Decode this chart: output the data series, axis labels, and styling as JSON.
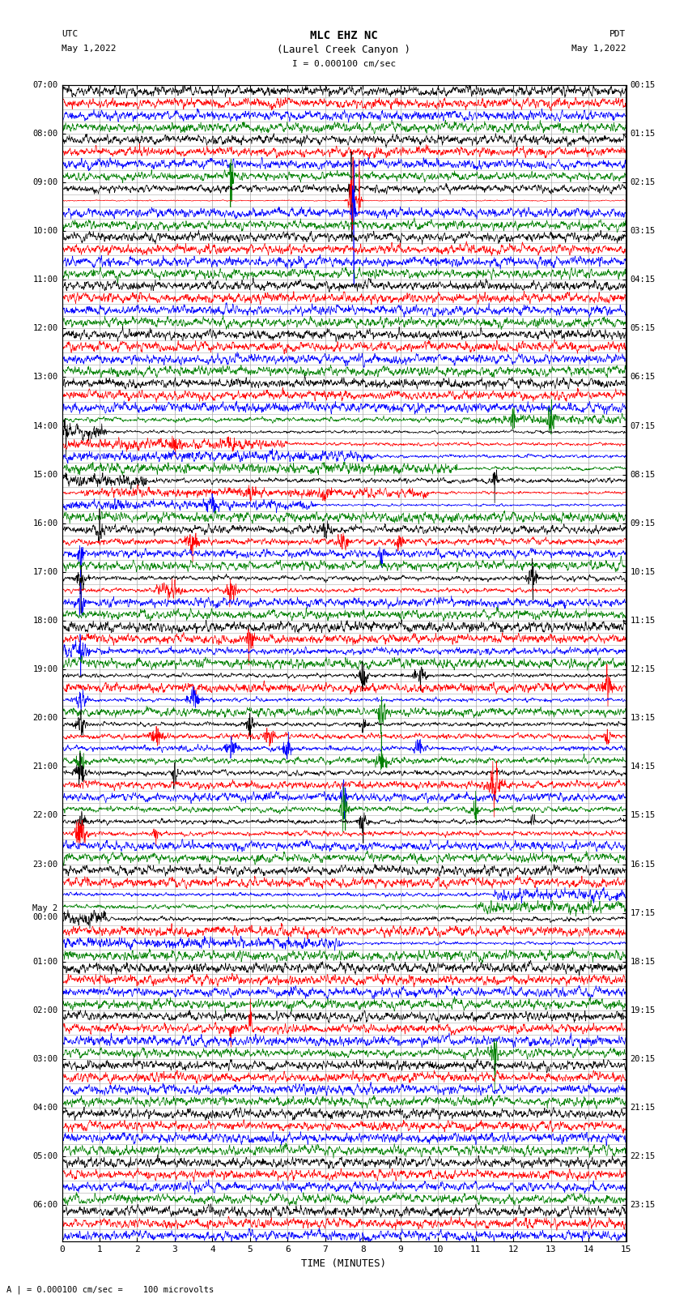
{
  "title_line1": "MLC EHZ NC",
  "title_line2": "(Laurel Creek Canyon )",
  "scale_label": "I = 0.000100 cm/sec",
  "footer_label": "A | = 0.000100 cm/sec =    100 microvolts",
  "xlabel": "TIME (MINUTES)",
  "left_header_line1": "UTC",
  "left_header_line2": "May 1,2022",
  "right_header_line1": "PDT",
  "right_header_line2": "May 1,2022",
  "utc_times": [
    "07:00",
    "",
    "",
    "",
    "08:00",
    "",
    "",
    "",
    "09:00",
    "",
    "",
    "",
    "10:00",
    "",
    "",
    "",
    "11:00",
    "",
    "",
    "",
    "12:00",
    "",
    "",
    "",
    "13:00",
    "",
    "",
    "",
    "14:00",
    "",
    "",
    "",
    "15:00",
    "",
    "",
    "",
    "16:00",
    "",
    "",
    "",
    "17:00",
    "",
    "",
    "",
    "18:00",
    "",
    "",
    "",
    "19:00",
    "",
    "",
    "",
    "20:00",
    "",
    "",
    "",
    "21:00",
    "",
    "",
    "",
    "22:00",
    "",
    "",
    "",
    "23:00",
    "",
    "",
    "",
    "May 2\n00:00",
    "",
    "",
    "",
    "01:00",
    "",
    "",
    "",
    "02:00",
    "",
    "",
    "",
    "03:00",
    "",
    "",
    "",
    "04:00",
    "",
    "",
    "",
    "05:00",
    "",
    "",
    "",
    "06:00",
    "",
    ""
  ],
  "pdt_times": [
    "00:15",
    "",
    "",
    "",
    "01:15",
    "",
    "",
    "",
    "02:15",
    "",
    "",
    "",
    "03:15",
    "",
    "",
    "",
    "04:15",
    "",
    "",
    "",
    "05:15",
    "",
    "",
    "",
    "06:15",
    "",
    "",
    "",
    "07:15",
    "",
    "",
    "",
    "08:15",
    "",
    "",
    "",
    "09:15",
    "",
    "",
    "",
    "10:15",
    "",
    "",
    "",
    "11:15",
    "",
    "",
    "",
    "12:15",
    "",
    "",
    "",
    "13:15",
    "",
    "",
    "",
    "14:15",
    "",
    "",
    "",
    "15:15",
    "",
    "",
    "",
    "16:15",
    "",
    "",
    "",
    "17:15",
    "",
    "",
    "",
    "18:15",
    "",
    "",
    "",
    "19:15",
    "",
    "",
    "",
    "20:15",
    "",
    "",
    "",
    "21:15",
    "",
    "",
    "",
    "22:15",
    "",
    "",
    "",
    "23:15",
    "",
    ""
  ],
  "colors": [
    "black",
    "red",
    "blue",
    "green"
  ],
  "num_rows": 95,
  "minutes": 15,
  "bg_color": "white",
  "hline_color": "#aaaaaa",
  "vline_color": "#aaaaaa"
}
